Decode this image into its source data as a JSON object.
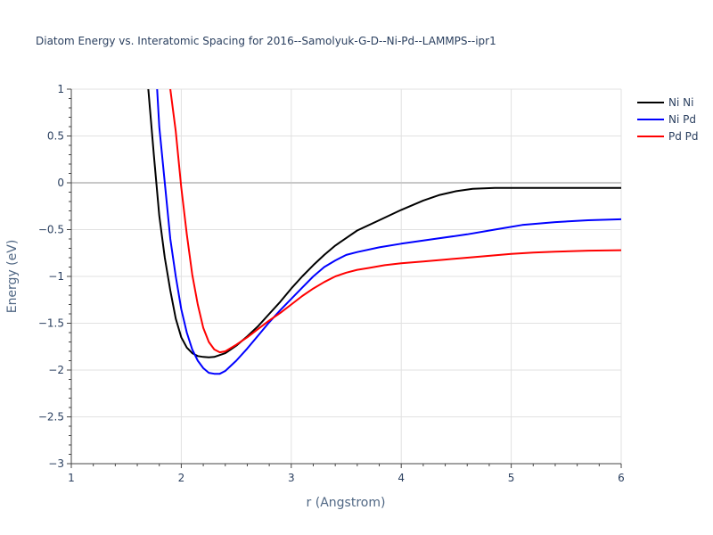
{
  "chart_data": {
    "type": "line",
    "title": "Diatom Energy vs. Interatomic Spacing for 2016--Samolyuk-G-D--Ni-Pd--LAMMPS--ipr1",
    "xlabel": "r (Angstrom)",
    "ylabel": "Energy (eV)",
    "xlim": [
      1,
      6
    ],
    "ylim": [
      -3,
      1
    ],
    "xticks": [
      1,
      2,
      3,
      4,
      5,
      6
    ],
    "xtick_labels": [
      "1",
      "2",
      "3",
      "4",
      "5",
      "6"
    ],
    "yticks": [
      -3,
      -2.5,
      -2,
      -1.5,
      -1,
      -0.5,
      0,
      0.5,
      1
    ],
    "ytick_labels": [
      "−3",
      "−2.5",
      "−2",
      "−1.5",
      "−1",
      "−0.5",
      "0",
      "0.5",
      "1"
    ],
    "grid": true,
    "legend_position": "top-right",
    "series": [
      {
        "name": "Ni Ni",
        "color": "#000000",
        "x": [
          1.6,
          1.7,
          1.75,
          1.8,
          1.85,
          1.9,
          1.95,
          2.0,
          2.05,
          2.1,
          2.15,
          2.2,
          2.25,
          2.3,
          2.35,
          2.4,
          2.5,
          2.6,
          2.7,
          2.8,
          2.9,
          3.0,
          3.1,
          3.2,
          3.3,
          3.4,
          3.5,
          3.6,
          3.8,
          4.0,
          4.2,
          4.35,
          4.5,
          4.65,
          4.85,
          5.0,
          5.5,
          6.0
        ],
        "y": [
          3.0,
          1.0,
          0.3,
          -0.35,
          -0.8,
          -1.15,
          -1.45,
          -1.65,
          -1.76,
          -1.82,
          -1.85,
          -1.86,
          -1.865,
          -1.86,
          -1.84,
          -1.82,
          -1.74,
          -1.64,
          -1.53,
          -1.4,
          -1.27,
          -1.13,
          -1.0,
          -0.88,
          -0.77,
          -0.67,
          -0.59,
          -0.51,
          -0.4,
          -0.29,
          -0.19,
          -0.13,
          -0.09,
          -0.065,
          -0.055,
          -0.055,
          -0.055,
          -0.055
        ]
      },
      {
        "name": "Ni Pd",
        "color": "#0000ff",
        "x": [
          1.7,
          1.78,
          1.8,
          1.85,
          1.9,
          1.95,
          2.0,
          2.05,
          2.1,
          2.15,
          2.2,
          2.25,
          2.3,
          2.35,
          2.4,
          2.5,
          2.6,
          2.7,
          2.8,
          2.9,
          3.0,
          3.1,
          3.2,
          3.3,
          3.4,
          3.5,
          3.6,
          3.8,
          4.0,
          4.3,
          4.6,
          4.85,
          5.1,
          5.4,
          5.7,
          6.0
        ],
        "y": [
          3.0,
          1.0,
          0.6,
          0.0,
          -0.6,
          -1.0,
          -1.35,
          -1.6,
          -1.78,
          -1.9,
          -1.98,
          -2.03,
          -2.04,
          -2.04,
          -2.01,
          -1.9,
          -1.77,
          -1.63,
          -1.49,
          -1.36,
          -1.24,
          -1.12,
          -1.0,
          -0.9,
          -0.83,
          -0.77,
          -0.74,
          -0.69,
          -0.65,
          -0.6,
          -0.55,
          -0.5,
          -0.45,
          -0.42,
          -0.4,
          -0.39
        ]
      },
      {
        "name": "Pd Pd",
        "color": "#ff0000",
        "x": [
          1.85,
          1.9,
          1.95,
          2.0,
          2.05,
          2.1,
          2.15,
          2.2,
          2.25,
          2.3,
          2.35,
          2.4,
          2.5,
          2.6,
          2.7,
          2.8,
          2.9,
          3.0,
          3.1,
          3.2,
          3.3,
          3.4,
          3.5,
          3.6,
          3.7,
          3.85,
          4.0,
          4.2,
          4.4,
          4.6,
          4.8,
          5.0,
          5.2,
          5.4,
          5.7,
          6.0
        ],
        "y": [
          3.0,
          1.0,
          0.55,
          -0.05,
          -0.55,
          -0.98,
          -1.3,
          -1.55,
          -1.7,
          -1.78,
          -1.81,
          -1.8,
          -1.73,
          -1.65,
          -1.56,
          -1.47,
          -1.39,
          -1.3,
          -1.21,
          -1.13,
          -1.06,
          -1.0,
          -0.96,
          -0.93,
          -0.91,
          -0.88,
          -0.86,
          -0.84,
          -0.82,
          -0.8,
          -0.78,
          -0.76,
          -0.745,
          -0.735,
          -0.725,
          -0.72
        ]
      }
    ]
  }
}
